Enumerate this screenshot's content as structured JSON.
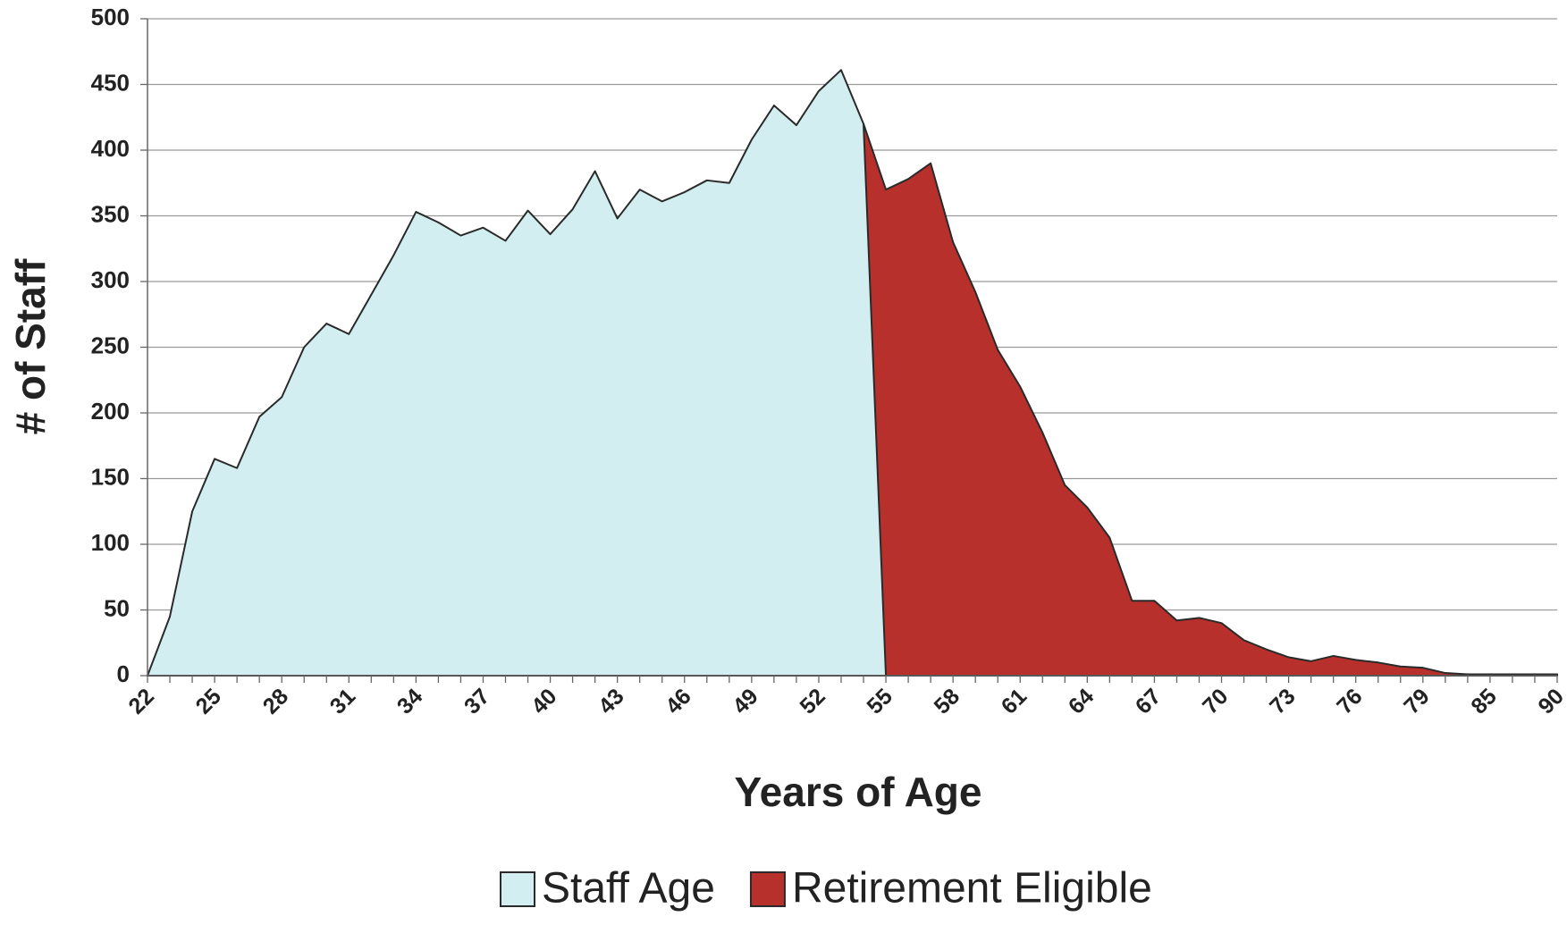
{
  "chart_data": {
    "type": "area",
    "xlabel": "Years of Age",
    "ylabel": "# of Staff",
    "categories": [
      "22",
      null,
      null,
      "25",
      null,
      null,
      "28",
      null,
      null,
      "31",
      null,
      null,
      "34",
      null,
      null,
      "37",
      null,
      null,
      "40",
      null,
      null,
      "43",
      null,
      null,
      "46",
      null,
      null,
      "49",
      null,
      null,
      "52",
      null,
      null,
      "55",
      null,
      null,
      "58",
      null,
      null,
      "61",
      null,
      null,
      "64",
      null,
      null,
      "67",
      null,
      null,
      "70",
      null,
      null,
      "73",
      null,
      null,
      "76",
      null,
      null,
      "79",
      null,
      null,
      "85",
      null,
      null,
      "90"
    ],
    "series": [
      {
        "name": "Staff Age",
        "color": "#d3eef0",
        "values": [
          0,
          45,
          125,
          165,
          158,
          197,
          212,
          250,
          268,
          260,
          290,
          320,
          353,
          345,
          335,
          341,
          331,
          354,
          336,
          355,
          384,
          348,
          370,
          361,
          368,
          377,
          375,
          408,
          434,
          419,
          445,
          461,
          420,
          0,
          null,
          null,
          null,
          null,
          null,
          null,
          null,
          null,
          null,
          null,
          null,
          null,
          null,
          null,
          null,
          null,
          null,
          null,
          null,
          null,
          null,
          null,
          null,
          null,
          null,
          null,
          null,
          null,
          null,
          null
        ]
      },
      {
        "name": "Retirement Eligible",
        "color": "#b8302c",
        "values": [
          null,
          null,
          null,
          null,
          null,
          null,
          null,
          null,
          null,
          null,
          null,
          null,
          null,
          null,
          null,
          null,
          null,
          null,
          null,
          null,
          null,
          null,
          null,
          null,
          null,
          null,
          null,
          null,
          null,
          null,
          null,
          null,
          420,
          370,
          378,
          390,
          330,
          292,
          248,
          220,
          185,
          145,
          128,
          105,
          57,
          57,
          42,
          44,
          40,
          27,
          20,
          14,
          11,
          15,
          12,
          10,
          7,
          6,
          2,
          1,
          1,
          1,
          1,
          1
        ]
      }
    ],
    "ylim": [
      0,
      500
    ],
    "yticks": [
      0,
      50,
      100,
      150,
      200,
      250,
      300,
      350,
      400,
      450,
      500
    ],
    "grid": true,
    "legend": "bottom"
  }
}
